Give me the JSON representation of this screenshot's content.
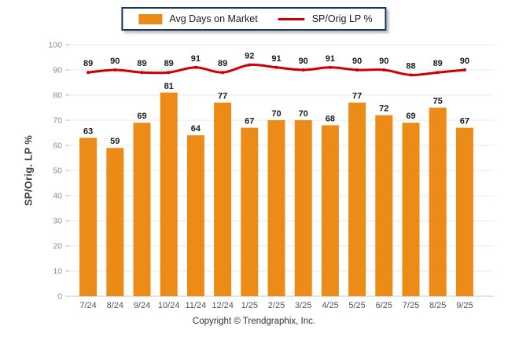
{
  "chart_data": {
    "type": "bar+line",
    "categories": [
      "7/24",
      "8/24",
      "9/24",
      "10/24",
      "11/24",
      "12/24",
      "1/25",
      "2/25",
      "3/25",
      "4/25",
      "5/25",
      "6/25",
      "7/25",
      "8/25",
      "9/25"
    ],
    "series": [
      {
        "name": "Avg Days on Market",
        "type": "bar",
        "color": "#ED8B18",
        "values": [
          63,
          59,
          69,
          81,
          64,
          77,
          67,
          70,
          70,
          68,
          77,
          72,
          69,
          75,
          67
        ]
      },
      {
        "name": "SP/Orig LP %",
        "type": "line",
        "color": "#CC0000",
        "values": [
          89,
          90,
          89,
          89,
          91,
          89,
          92,
          91,
          90,
          91,
          90,
          90,
          88,
          89,
          90
        ]
      }
    ],
    "title": "",
    "xlabel": "",
    "ylabel": "SP/Orig. LP %",
    "ylim": [
      0,
      100
    ],
    "ytick_step": 10,
    "grid": true,
    "legend_position": "top-center"
  },
  "palette": {
    "grid_line": "#E9E9E9",
    "axis_line": "#C4C4C4",
    "tick_mark": "#BDBDBD",
    "y_tick_label": "#8C8C8C",
    "x_tick_label": "#4A5568",
    "value_label": "#1A1A1A",
    "legend_border": "#17375E"
  },
  "footer": {
    "copyright": "Copyright © Trendgraphix, Inc."
  }
}
